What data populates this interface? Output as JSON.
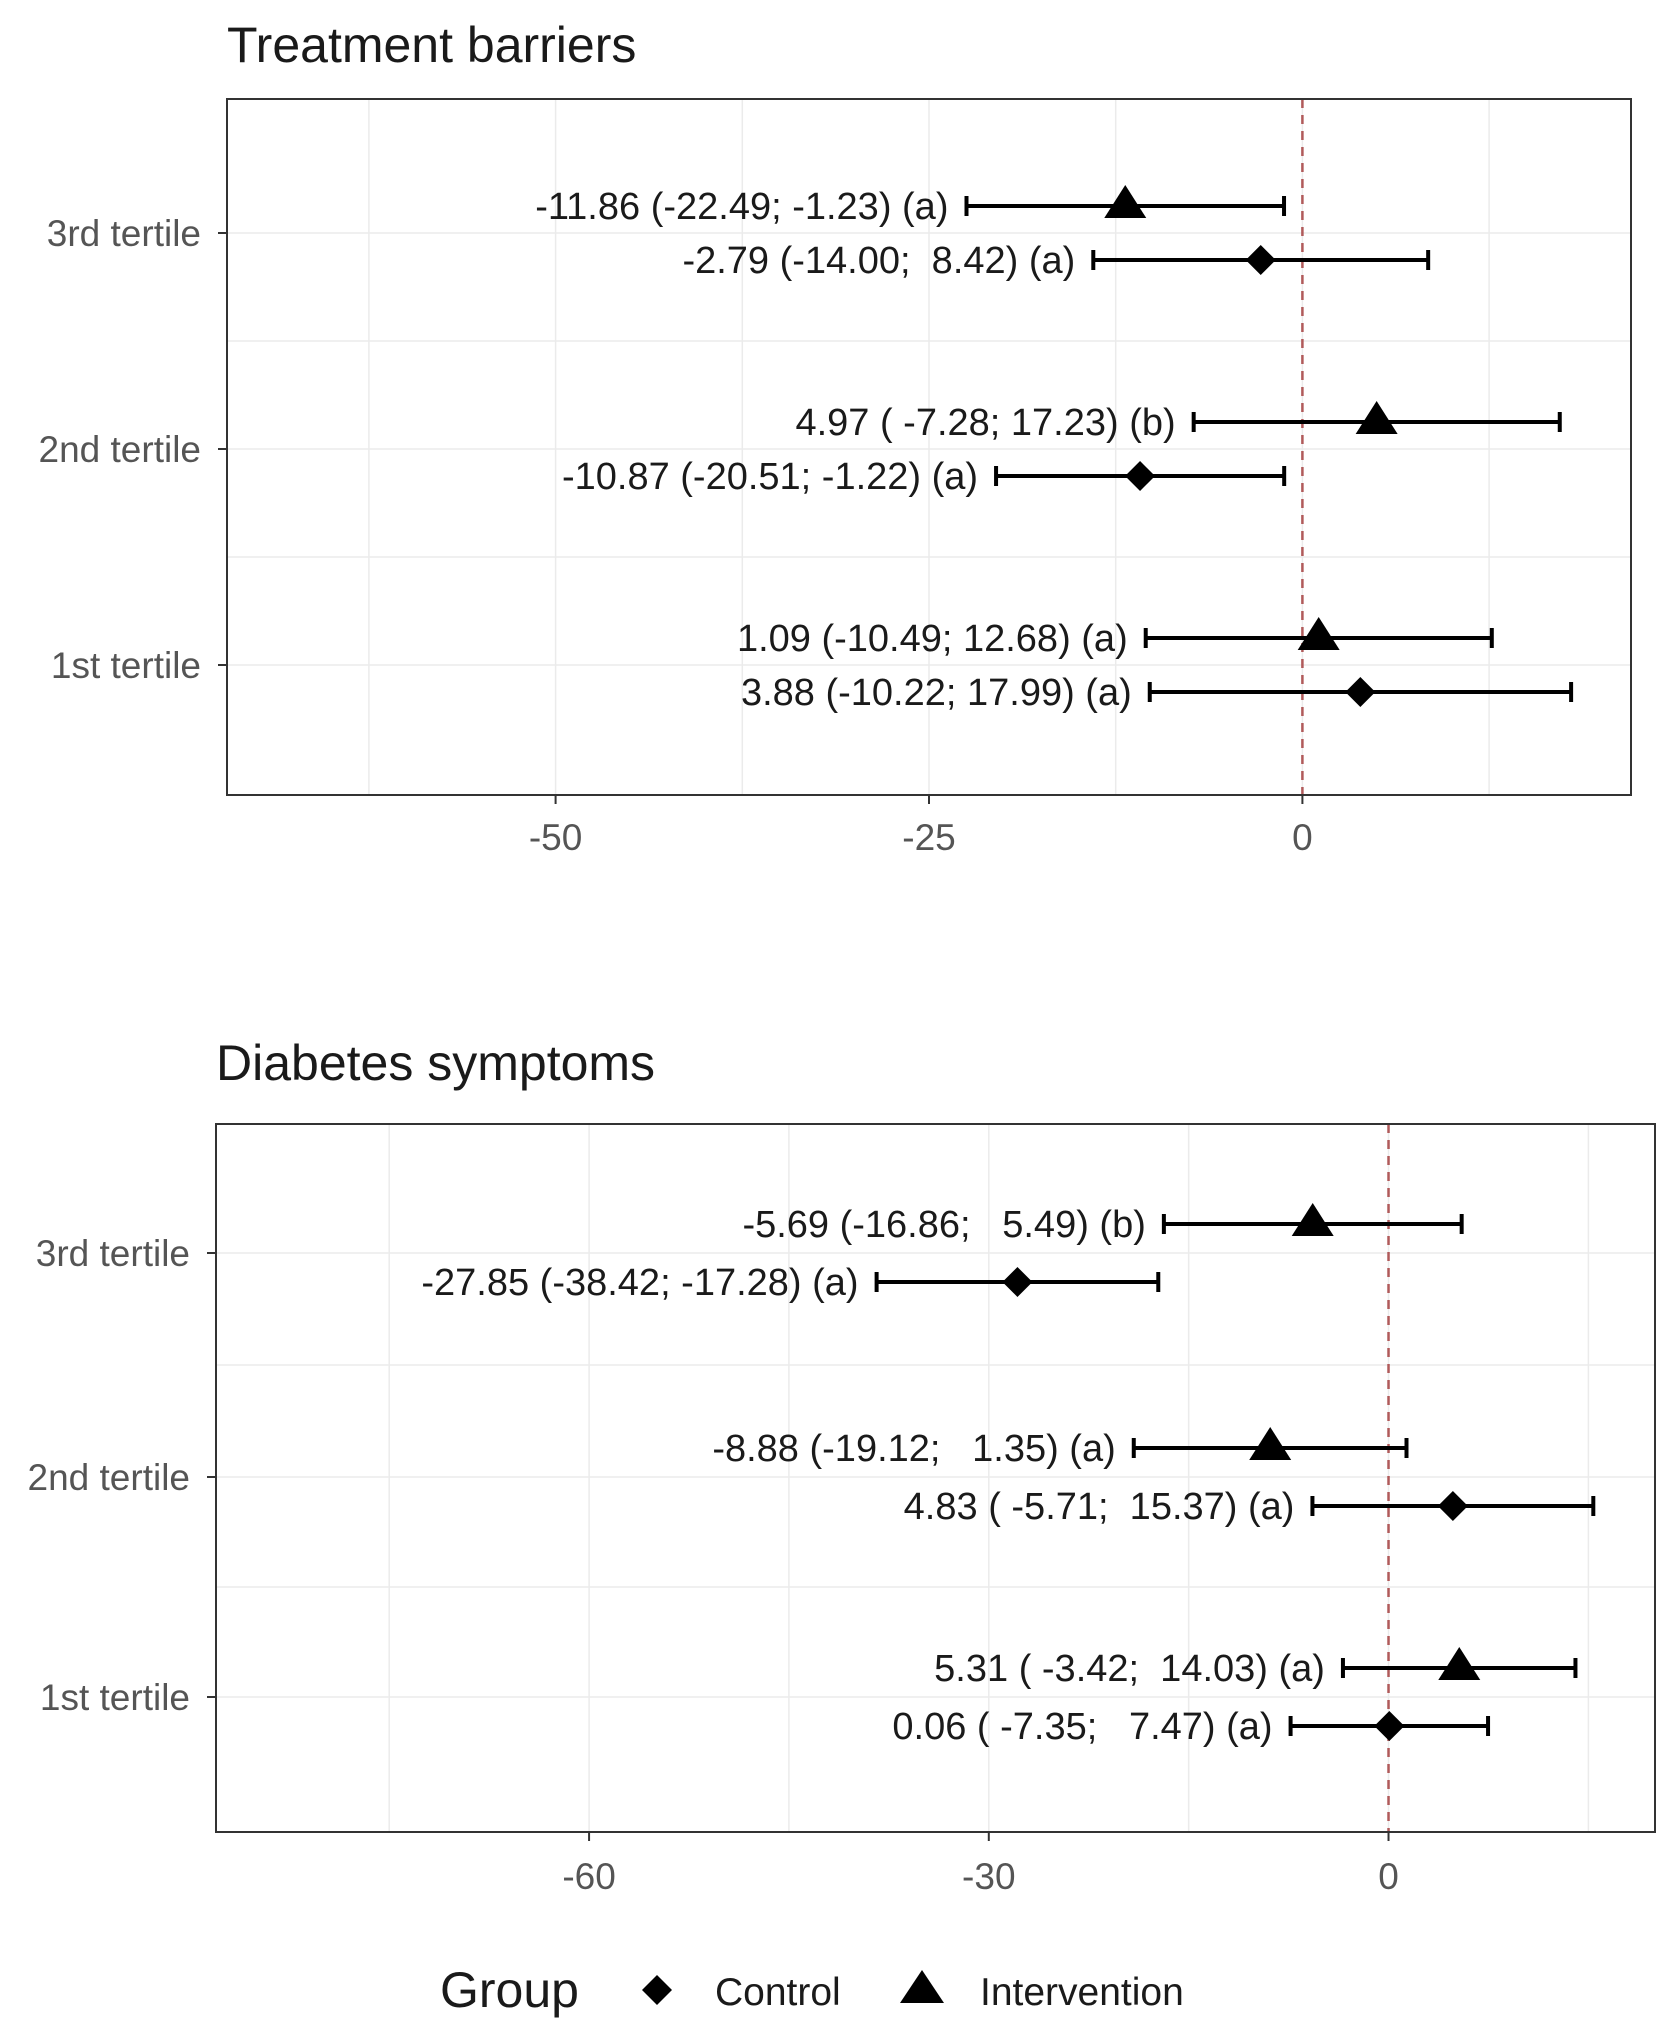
{
  "chart_data": [
    {
      "type": "forest",
      "title": "Treatment barriers",
      "xlim": [
        -72,
        22
      ],
      "x_ticks": [
        -50,
        -25,
        0
      ],
      "x_tick_labels": [
        "-50",
        "-25",
        "0"
      ],
      "reference_line": 0,
      "categories": [
        "3rd tertile",
        "2nd tertile",
        "1st tertile"
      ],
      "points": [
        {
          "category": "3rd tertile",
          "group": "Intervention",
          "estimate": -11.86,
          "lower": -22.49,
          "upper": -1.23,
          "label": "-11.86 (-22.49; -1.23) (a)"
        },
        {
          "category": "3rd tertile",
          "group": "Control",
          "estimate": -2.79,
          "lower": -14.0,
          "upper": 8.42,
          "label": "-2.79 (-14.00;  8.42) (a)"
        },
        {
          "category": "2nd tertile",
          "group": "Intervention",
          "estimate": 4.97,
          "lower": -7.28,
          "upper": 17.23,
          "label": "4.97 ( -7.28; 17.23) (b)"
        },
        {
          "category": "2nd tertile",
          "group": "Control",
          "estimate": -10.87,
          "lower": -20.51,
          "upper": -1.22,
          "label": "-10.87 (-20.51; -1.22) (a)"
        },
        {
          "category": "1st tertile",
          "group": "Intervention",
          "estimate": 1.09,
          "lower": -10.49,
          "upper": 12.68,
          "label": "1.09 (-10.49; 12.68) (a)"
        },
        {
          "category": "1st tertile",
          "group": "Control",
          "estimate": 3.88,
          "lower": -10.22,
          "upper": 17.99,
          "label": "3.88 (-10.22; 17.99) (a)"
        }
      ]
    },
    {
      "type": "forest",
      "title": "Diabetes symptoms",
      "xlim": [
        -88,
        20
      ],
      "x_ticks": [
        -60,
        -30,
        0
      ],
      "x_tick_labels": [
        "-60",
        "-30",
        "0"
      ],
      "reference_line": 0,
      "categories": [
        "3rd tertile",
        "2nd tertile",
        "1st tertile"
      ],
      "points": [
        {
          "category": "3rd tertile",
          "group": "Intervention",
          "estimate": -5.69,
          "lower": -16.86,
          "upper": 5.49,
          "label": "-5.69 (-16.86;   5.49) (b)"
        },
        {
          "category": "3rd tertile",
          "group": "Control",
          "estimate": -27.85,
          "lower": -38.42,
          "upper": -17.28,
          "label": "-27.85 (-38.42; -17.28) (a)"
        },
        {
          "category": "2nd tertile",
          "group": "Intervention",
          "estimate": -8.88,
          "lower": -19.12,
          "upper": 1.35,
          "label": "-8.88 (-19.12;   1.35) (a)"
        },
        {
          "category": "2nd tertile",
          "group": "Control",
          "estimate": 4.83,
          "lower": -5.71,
          "upper": 15.37,
          "label": "4.83 ( -5.71;  15.37) (a)"
        },
        {
          "category": "1st tertile",
          "group": "Intervention",
          "estimate": 5.31,
          "lower": -3.42,
          "upper": 14.03,
          "label": "5.31 ( -3.42;  14.03) (a)"
        },
        {
          "category": "1st tertile",
          "group": "Control",
          "estimate": 0.06,
          "lower": -7.35,
          "upper": 7.47,
          "label": "0.06 ( -7.35;   7.47) (a)"
        }
      ]
    }
  ],
  "legend": {
    "title": "Group",
    "items": [
      {
        "label": "Control",
        "shape": "diamond"
      },
      {
        "label": "Intervention",
        "shape": "triangle"
      }
    ]
  },
  "colors": {
    "reference_line": "#b05a5a",
    "grid": "#ebebeb",
    "panel_border": "#333333",
    "marks": "#000000"
  }
}
